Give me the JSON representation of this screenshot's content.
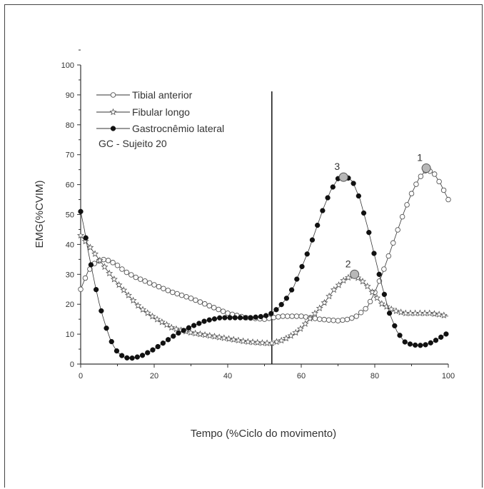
{
  "chart_data": {
    "type": "line",
    "xlabel": "Tempo (%Ciclo do movimento)",
    "ylabel": "EMG(%CVIM)",
    "xlim": [
      0,
      100
    ],
    "ylim": [
      0,
      100
    ],
    "xticks": [
      "0",
      "20",
      "40",
      "60",
      "80",
      "100"
    ],
    "yticks": [
      "0",
      "10",
      "20",
      "30",
      "40",
      "50",
      "60",
      "70",
      "80",
      "90",
      "100"
    ],
    "legend_position": "top-left",
    "legend_note": "GC - Sujeito 20",
    "vertical_line_x": 52,
    "series": [
      {
        "name": "Tibial anterior",
        "marker": "open-circle",
        "x": [
          0,
          2,
          4,
          6,
          8,
          10,
          12,
          15,
          18,
          20,
          25,
          30,
          35,
          40,
          45,
          50,
          52,
          55,
          60,
          65,
          70,
          73,
          75,
          78,
          80,
          82,
          84,
          86,
          88,
          90,
          92,
          94,
          96,
          98,
          100
        ],
        "y": [
          25,
          31,
          34,
          35,
          34.5,
          33,
          31,
          29,
          27.5,
          26.5,
          24,
          22,
          19.5,
          17,
          15.5,
          15,
          15.5,
          16,
          16,
          15,
          14.5,
          15,
          16,
          19,
          24,
          30,
          37,
          44,
          51,
          57,
          62,
          65,
          64,
          60,
          55
        ]
      },
      {
        "name": "Fibular longo",
        "marker": "open-star",
        "x": [
          0,
          2,
          5,
          8,
          10,
          13,
          16,
          20,
          25,
          30,
          35,
          40,
          45,
          50,
          52,
          55,
          58,
          60,
          63,
          66,
          69,
          72,
          74,
          76,
          78,
          80,
          82,
          85,
          88,
          92,
          95,
          98,
          100
        ],
        "y": [
          43,
          40,
          35,
          30,
          27,
          23,
          19,
          15.5,
          12,
          10.5,
          9.5,
          8.5,
          7.5,
          7,
          7,
          8,
          10,
          12,
          16,
          20,
          25,
          28.5,
          29.5,
          28.5,
          26,
          23,
          20,
          18,
          17,
          17,
          17,
          16.5,
          16
        ]
      },
      {
        "name": "Gastrocnêmio lateral",
        "marker": "filled-circle",
        "x": [
          0,
          1,
          2,
          3,
          4,
          5,
          6,
          7,
          8,
          9,
          10,
          11,
          12,
          13,
          14,
          15,
          17,
          20,
          23,
          26,
          30,
          34,
          38,
          42,
          46,
          50,
          52,
          54,
          56,
          58,
          60,
          62,
          64,
          66,
          68,
          70,
          72,
          74,
          76,
          78,
          80,
          82,
          84,
          86,
          88,
          90,
          92,
          94,
          96,
          98,
          100
        ],
        "y": [
          51,
          45,
          38,
          32,
          26,
          20.5,
          16,
          12,
          8.5,
          6,
          4,
          3,
          2.2,
          2,
          2,
          2.2,
          3,
          5,
          7.5,
          10,
          12.5,
          14.5,
          15.5,
          15.5,
          15.5,
          16,
          17,
          19,
          22,
          26,
          32,
          38,
          45,
          52,
          58,
          62,
          63,
          61,
          55,
          46,
          36,
          26,
          17,
          11,
          7.5,
          6.5,
          6.2,
          6.5,
          7.5,
          9,
          10.5
        ]
      }
    ],
    "highlight_points": [
      {
        "label": "1",
        "x": 94,
        "y": 65.5
      },
      {
        "label": "2",
        "x": 74.5,
        "y": 30
      },
      {
        "label": "3",
        "x": 71.5,
        "y": 62.5
      }
    ]
  }
}
